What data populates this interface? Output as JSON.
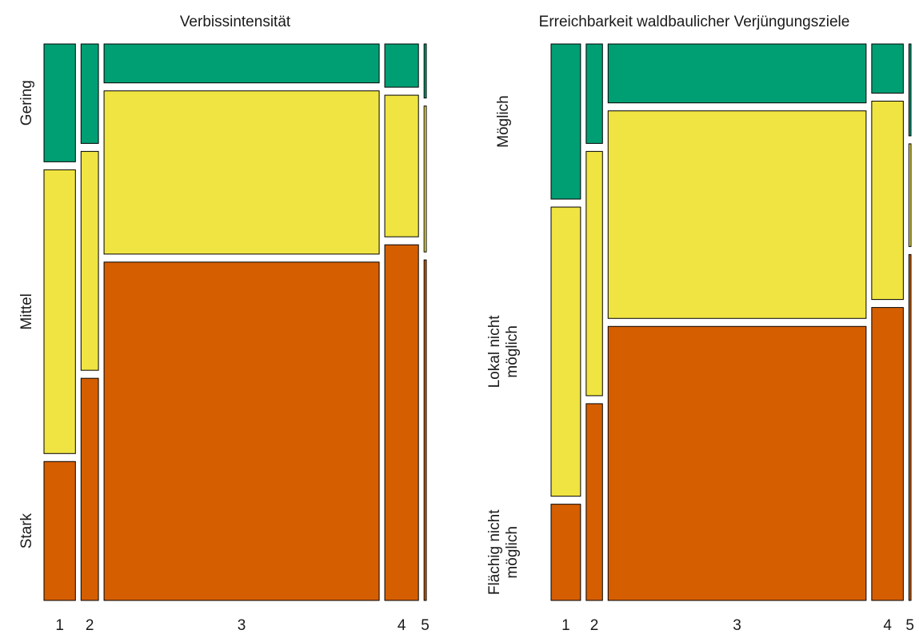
{
  "colors": {
    "green": "#009E73",
    "yellow": "#F0E442",
    "orange": "#D55E00"
  },
  "chart_data": [
    {
      "type": "mosaic",
      "title": "Verbissintensität",
      "categories": [
        "1",
        "2",
        "3",
        "4",
        "5"
      ],
      "column_widths": [
        0.056,
        0.031,
        0.49,
        0.06,
        0.004
      ],
      "levels": [
        "Gering",
        "Mittel",
        "Stark"
      ],
      "level_colors": [
        "green",
        "yellow",
        "orange"
      ],
      "series": [
        {
          "name": "Gering",
          "values": [
            0.218,
            0.184,
            0.072,
            0.08,
            0.1
          ]
        },
        {
          "name": "Mittel",
          "values": [
            0.525,
            0.405,
            0.302,
            0.262,
            0.27
          ]
        },
        {
          "name": "Stark",
          "values": [
            0.257,
            0.411,
            0.626,
            0.658,
            0.63
          ]
        }
      ]
    },
    {
      "type": "mosaic",
      "title": "Erreichbarkeit waldbaulicher Verjüngungsziele",
      "categories": [
        "1",
        "2",
        "3",
        "4",
        "5"
      ],
      "column_widths": [
        0.056,
        0.031,
        0.49,
        0.06,
        0.004
      ],
      "levels": [
        "Möglich",
        "Lokal nicht möglich",
        "Flächig nicht möglich"
      ],
      "level_label_lines": [
        [
          "Möglich"
        ],
        [
          "Lokal nicht",
          "möglich"
        ],
        [
          "Flächig nicht",
          "möglich"
        ]
      ],
      "level_colors": [
        "green",
        "yellow",
        "orange"
      ],
      "series": [
        {
          "name": "Möglich",
          "values": [
            0.287,
            0.184,
            0.109,
            0.091,
            0.17
          ]
        },
        {
          "name": "Lokal nicht möglich",
          "values": [
            0.535,
            0.452,
            0.384,
            0.367,
            0.19
          ]
        },
        {
          "name": "Flächig nicht möglich",
          "values": [
            0.178,
            0.364,
            0.507,
            0.542,
            0.64
          ]
        }
      ]
    }
  ]
}
